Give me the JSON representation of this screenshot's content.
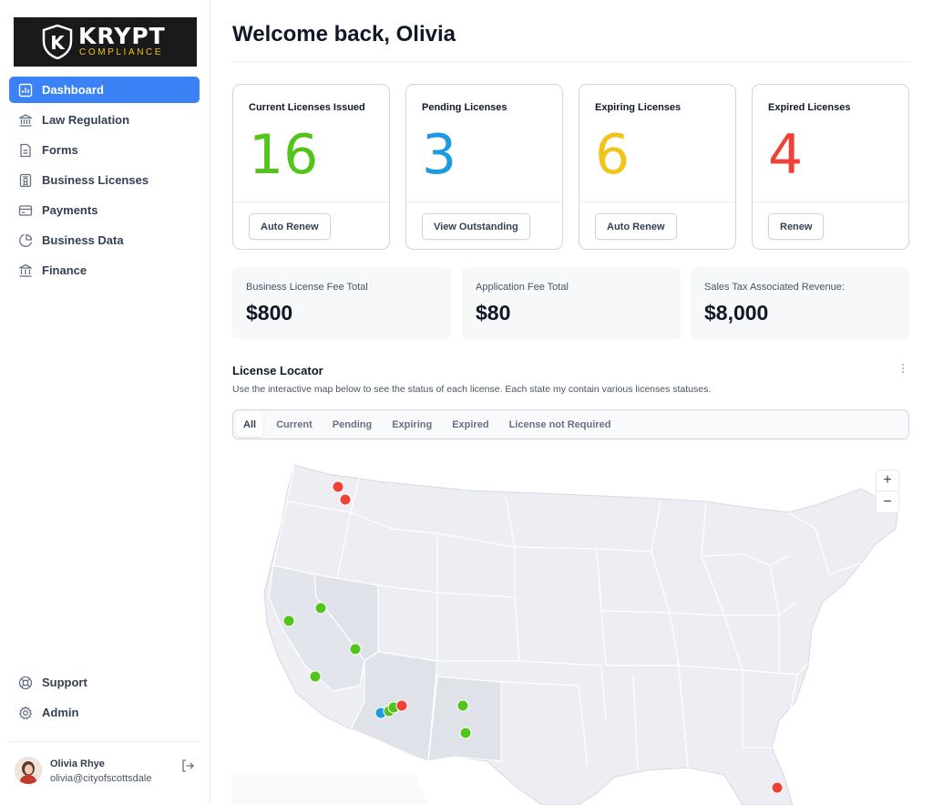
{
  "brand": {
    "name": "KRYPT",
    "tagline": "COMPLIANCE",
    "mark": "K"
  },
  "sidebar": {
    "items": [
      {
        "label": "Dashboard",
        "icon": "bar-chart-icon",
        "active": true
      },
      {
        "label": "Law Regulation",
        "icon": "bank-icon"
      },
      {
        "label": "Forms",
        "icon": "file-icon"
      },
      {
        "label": "Business Licenses",
        "icon": "certificate-icon"
      },
      {
        "label": "Payments",
        "icon": "credit-card-icon"
      },
      {
        "label": "Business Data",
        "icon": "pie-chart-icon"
      },
      {
        "label": "Finance",
        "icon": "building-icon"
      }
    ],
    "bottom_items": [
      {
        "label": "Support",
        "icon": "life-buoy-icon"
      },
      {
        "label": "Admin",
        "icon": "gear-icon"
      }
    ],
    "user": {
      "name": "Olivia Rhye",
      "email": "olivia@cityofscottsdale"
    }
  },
  "page": {
    "title": "Welcome back, Olivia"
  },
  "license_cards": [
    {
      "label": "Current Licenses Issued",
      "value": "16",
      "color": "#52c41a",
      "button": "Auto Renew"
    },
    {
      "label": "Pending Licenses",
      "value": "3",
      "color": "#1e9be0",
      "button": "View Outstanding"
    },
    {
      "label": "Expiring Licenses",
      "value": "6",
      "color": "#f0c419",
      "button": "Auto Renew"
    },
    {
      "label": "Expired Licenses",
      "value": "4",
      "color": "#ef4136",
      "button": "Renew"
    }
  ],
  "fee_cards": [
    {
      "label": "Business License Fee Total",
      "value": "$800"
    },
    {
      "label": "Application Fee Total",
      "value": "$80"
    },
    {
      "label": "Sales Tax Associated Revenue:",
      "value": "$8,000"
    }
  ],
  "locator": {
    "title": "License Locator",
    "description": "Use the interactive map below to see the status of each license. Each state my contain various licenses statuses.",
    "tabs": [
      "All",
      "Current",
      "Pending",
      "Expiring",
      "Expired",
      "License not Required"
    ],
    "active_tab": "All",
    "zoom_in": "+",
    "zoom_out": "−",
    "status_colors": {
      "current": "#52c41a",
      "pending": "#1e9be0",
      "expired": "#ef4136"
    }
  }
}
